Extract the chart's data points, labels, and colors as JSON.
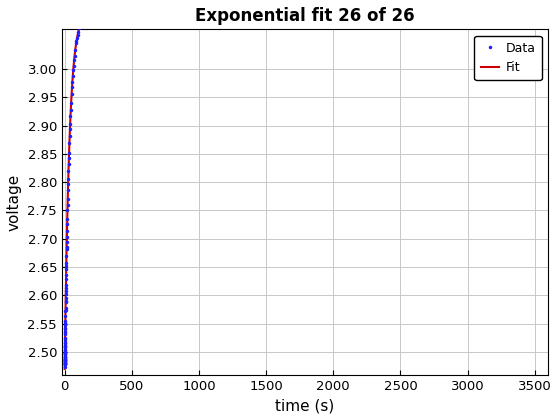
{
  "title": "Exponential fit 26 of 26",
  "xlabel": "time (s)",
  "ylabel": "voltage",
  "fit_params": {
    "V_max": 3.1,
    "V_0": 2.47,
    "tau": 35.0
  },
  "xlim": [
    -20,
    3600
  ],
  "ylim": [
    2.46,
    3.07
  ],
  "xticks": [
    0,
    500,
    1000,
    1500,
    2000,
    2500,
    3000,
    3500
  ],
  "yticks": [
    2.5,
    2.55,
    2.6,
    2.65,
    2.7,
    2.75,
    2.8,
    2.85,
    2.9,
    2.95,
    3.0
  ],
  "data_color": "#1f1fff",
  "fit_color": "#cc0000",
  "data_marker": ".",
  "data_markersize": 3,
  "fit_linewidth": 1.5,
  "legend_labels": [
    "Data",
    "Fit"
  ],
  "grid_color": "#c8c8c8",
  "background_color": "#ffffff",
  "title_fontsize": 12,
  "axis_label_fontsize": 11,
  "tick_fontsize": 9.5
}
